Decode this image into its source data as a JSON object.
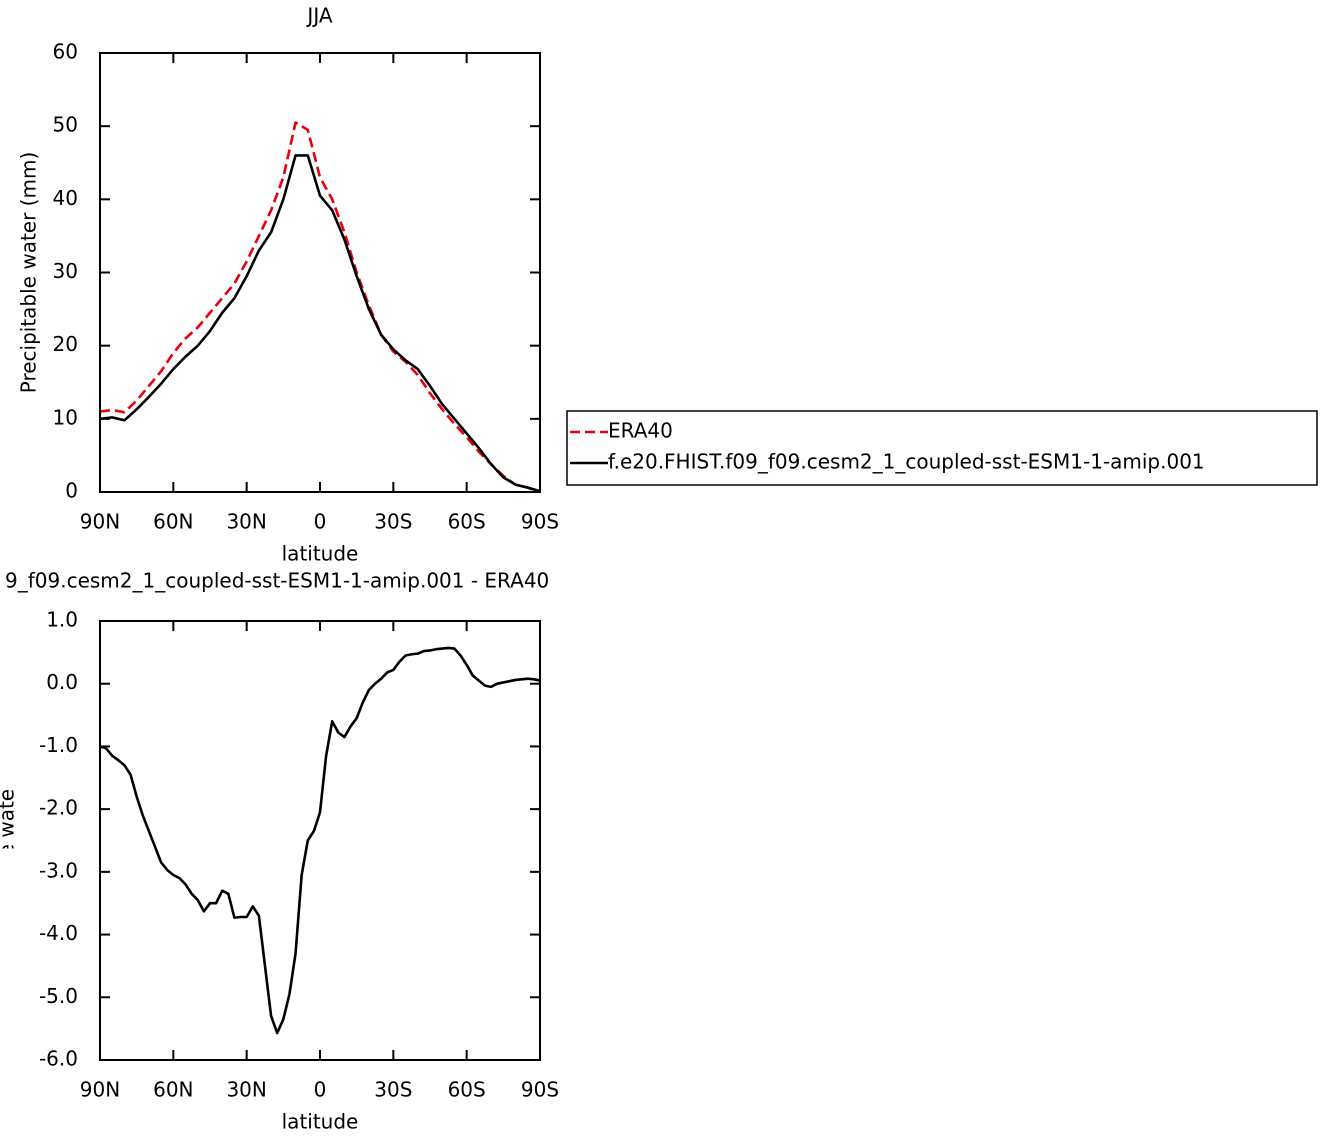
{
  "chart_data": [
    {
      "type": "line",
      "title": "JJA",
      "x_label": "latitude",
      "y_label": "Precipitable water  (mm)",
      "x": [
        90,
        85,
        80,
        75,
        70,
        65,
        60,
        55,
        50,
        45,
        40,
        35,
        30,
        25,
        20,
        15,
        10,
        5,
        0,
        -5,
        -10,
        -15,
        -20,
        -25,
        -30,
        -35,
        -40,
        -45,
        -50,
        -55,
        -60,
        -65,
        -70,
        -75,
        -80,
        -85,
        -90
      ],
      "xlim": [
        90,
        -90
      ],
      "xticks": [
        {
          "value": 90,
          "label": "90N"
        },
        {
          "value": 60,
          "label": "60N"
        },
        {
          "value": 30,
          "label": "30N"
        },
        0,
        {
          "value": -30,
          "label": "30S"
        },
        {
          "value": -60,
          "label": "60S"
        },
        {
          "value": -90,
          "label": "90S"
        }
      ],
      "ylim": [
        0,
        60
      ],
      "yticks": [
        0,
        10,
        20,
        30,
        40,
        50,
        60
      ],
      "legend": "right",
      "series": [
        {
          "name": "ERA40",
          "color": "#e8000b",
          "line_style": "dashed",
          "values": [
            11,
            11.2,
            10.9,
            12.5,
            14.5,
            16.5,
            19,
            21,
            22.5,
            24.5,
            26.5,
            28.5,
            31.5,
            35,
            38.5,
            43,
            50.5,
            49.5,
            43,
            40,
            35.5,
            30,
            25.5,
            21.5,
            19.2,
            17.8,
            16,
            13.5,
            11.3,
            9.3,
            7.5,
            5.5,
            3.8,
            2.2,
            1,
            0.6,
            0
          ]
        },
        {
          "name": "f.e20.FHIST.f09_f09.cesm2_1_coupled-sst-ESM1-1-amip.001",
          "color": "#000000",
          "line_style": "solid",
          "values": [
            10,
            10.2,
            9.8,
            11.3,
            13,
            14.8,
            16.8,
            18.5,
            20,
            22,
            24.5,
            26.5,
            29.5,
            33,
            35.5,
            40,
            46,
            46,
            40.5,
            38.5,
            34.5,
            29.5,
            25,
            21.5,
            19.5,
            18,
            16.8,
            14.5,
            12,
            10,
            8,
            6,
            3.8,
            2,
            1,
            0.6,
            0.1
          ]
        }
      ]
    },
    {
      "type": "line",
      "title": "9_f09.cesm2_1_coupled-sst-ESM1-1-amip.001 - ERA40",
      "x_label": "latitude",
      "y_label": "Precipitable water  (mm)",
      "x": [
        90,
        87.5,
        85,
        82.5,
        80,
        77.5,
        75,
        72.5,
        70,
        67.5,
        65,
        62.5,
        60,
        57.5,
        55,
        52.5,
        50,
        47.5,
        45,
        42.5,
        40,
        37.5,
        35,
        32.5,
        30,
        27.5,
        25,
        22.5,
        20,
        17.5,
        15,
        12.5,
        10,
        7.5,
        5,
        2.5,
        0,
        -2.5,
        -5,
        -7.5,
        -10,
        -12.5,
        -15,
        -17.5,
        -20,
        -22.5,
        -25,
        -27.5,
        -30,
        -32.5,
        -35,
        -37.5,
        -40,
        -42.5,
        -45,
        -47.5,
        -50,
        -52.5,
        -55,
        -57.5,
        -60,
        -62.5,
        -65,
        -67.5,
        -70,
        -72.5,
        -75,
        -77.5,
        -80,
        -82.5,
        -85,
        -87.5,
        -90
      ],
      "xlim": [
        90,
        -90
      ],
      "xticks": [
        {
          "value": 90,
          "label": "90N"
        },
        {
          "value": 60,
          "label": "60N"
        },
        {
          "value": 30,
          "label": "30N"
        },
        0,
        {
          "value": -30,
          "label": "30S"
        },
        {
          "value": -60,
          "label": "60S"
        },
        {
          "value": -90,
          "label": "90S"
        }
      ],
      "ylim": [
        -6,
        1
      ],
      "yticks": [
        {
          "value": -6,
          "label": "-6.0"
        },
        {
          "value": -5,
          "label": "-5.0"
        },
        {
          "value": -4,
          "label": "-4.0"
        },
        {
          "value": -3,
          "label": "-3.0"
        },
        {
          "value": -2,
          "label": "-2.0"
        },
        {
          "value": -1,
          "label": "-1.0"
        },
        {
          "value": 0,
          "label": "0.0"
        },
        {
          "value": 1,
          "label": "1.0"
        }
      ],
      "color": "#000000",
      "values": [
        -1.0,
        -1.03,
        -1.15,
        -1.22,
        -1.3,
        -1.45,
        -1.8,
        -2.1,
        -2.35,
        -2.6,
        -2.85,
        -2.97,
        -3.05,
        -3.1,
        -3.2,
        -3.35,
        -3.45,
        -3.63,
        -3.5,
        -3.5,
        -3.3,
        -3.35,
        -3.73,
        -3.72,
        -3.72,
        -3.55,
        -3.7,
        -4.5,
        -5.3,
        -5.57,
        -5.35,
        -4.95,
        -4.3,
        -3.05,
        -2.5,
        -2.35,
        -2.05,
        -1.15,
        -0.6,
        -0.78,
        -0.85,
        -0.68,
        -0.55,
        -0.3,
        -0.1,
        0,
        0.08,
        0.18,
        0.22,
        0.35,
        0.45,
        0.47,
        0.48,
        0.52,
        0.53,
        0.55,
        0.56,
        0.57,
        0.56,
        0.45,
        0.3,
        0.13,
        0.05,
        -0.03,
        -0.05,
        0,
        0.02,
        0.04,
        0.06,
        0.07,
        0.08,
        0.07,
        0.05
      ]
    }
  ]
}
